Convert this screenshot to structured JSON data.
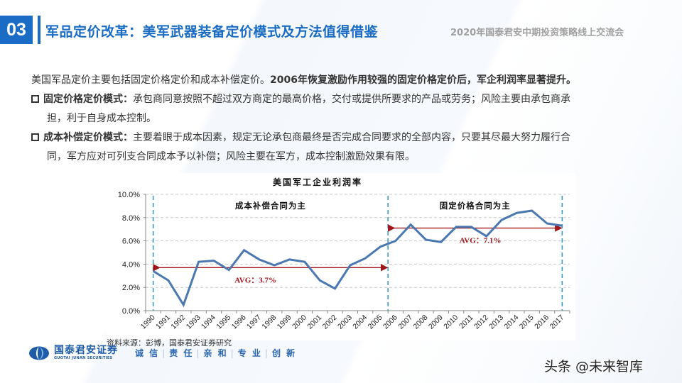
{
  "header": {
    "section_number": "03",
    "title": "军品定价改革：美军武器装备定价模式及方法值得借鉴",
    "conference": "2020年国泰君安中期投资策略线上交流会",
    "accent_color": "#1a6cc4"
  },
  "body": {
    "intro_normal": "美国军品定价主要包括固定价格定价和成本补偿定价。",
    "intro_bold": "2006年恢复激励作用较强的固定价格定价后，军企利润率显著提升。",
    "bullets": [
      {
        "label": "固定价格定价模式：",
        "line1": "承包商同意按照不超过双方商定的最高价格，交付或提供所要求的产品或劳务；风险主要由承包商承",
        "line2": "担，利于自身成本控制。"
      },
      {
        "label": "成本补偿定价模式：",
        "line1": "主要着眼于成本因素，规定无论承包商最终是否完成合同要求的全部内容，只要其尽最大努力履行合",
        "line2": "同，军方应对可列支合同成本予以补偿；风险主要在军方，成本控制激励效果有限。"
      }
    ]
  },
  "chart_data": {
    "type": "line",
    "title": "美国军工企业利润率",
    "xlabel": "",
    "ylabel": "",
    "x": [
      "1990",
      "1991",
      "1992",
      "1993",
      "1994",
      "1995",
      "1996",
      "1997",
      "1998",
      "1999",
      "2000",
      "2001",
      "2002",
      "2003",
      "2004",
      "2005",
      "2006",
      "2007",
      "2008",
      "2009",
      "2010",
      "2011",
      "2012",
      "2013",
      "2014",
      "2015",
      "2016",
      "2017"
    ],
    "series": [
      {
        "name": "美国军工企业利润率",
        "color": "#4a78b0",
        "values": [
          3.4,
          2.6,
          0.5,
          4.2,
          4.3,
          3.5,
          5.2,
          4.4,
          3.9,
          4.4,
          4.2,
          2.6,
          1.9,
          3.9,
          4.5,
          5.5,
          6.0,
          7.4,
          6.1,
          5.9,
          7.2,
          7.2,
          6.4,
          7.8,
          8.4,
          8.6,
          7.5,
          7.3
        ]
      }
    ],
    "ylim": [
      0,
      10
    ],
    "yticks": [
      "0.0%",
      "2.0%",
      "4.0%",
      "6.0%",
      "8.0%",
      "10.0%"
    ],
    "grid": true,
    "annotations": [
      {
        "text": "成本补偿合同为主",
        "range": [
          "1990",
          "2005"
        ]
      },
      {
        "text": "固定价格合同为主",
        "range": [
          "2006",
          "2017"
        ]
      },
      {
        "text": "AVG：3.7%",
        "value": 3.7,
        "range": [
          "1990",
          "2005"
        ],
        "color": "#a0161b"
      },
      {
        "text": "AVG：7.1%",
        "value": 7.1,
        "range": [
          "2006",
          "2017"
        ],
        "color": "#a0161b"
      }
    ],
    "divider_color": "#3a9bc2"
  },
  "footer": {
    "source": "资料来源：彭博，国泰君安证券研究",
    "logo_cn": "国泰君安证券",
    "logo_en": "GUOTAI JUNAN SECURITIES",
    "motto": [
      "诚 信",
      "责 任",
      "亲 和",
      "专 业",
      "创 新"
    ],
    "watermark": "头条 @未来智库"
  }
}
